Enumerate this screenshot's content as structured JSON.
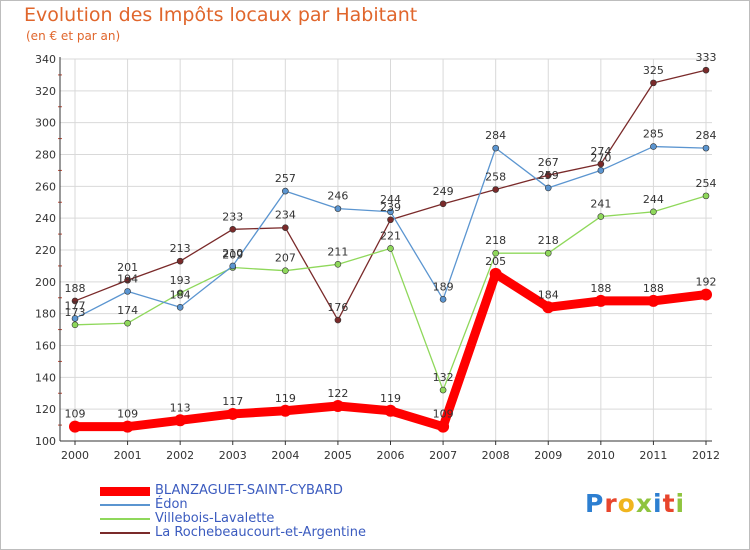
{
  "title": "Evolution des Impôts locaux par Habitant",
  "subtitle": "(en € et par an)",
  "logo": {
    "text": "Proxiti",
    "colors": [
      "#2d7fd1",
      "#e8452c",
      "#f0b51e",
      "#8fc43f",
      "#2d7fd1",
      "#e8452c",
      "#8fc43f"
    ]
  },
  "colors": {
    "frame": "#bdbdbd",
    "grid": "#d9d9d9",
    "axis": "#333333",
    "label": "#333333",
    "tick_minor": "#c0503d"
  },
  "chart_data": {
    "type": "line",
    "title": "Evolution des Impôts locaux par Habitant",
    "ylabel": "(en € et par an)",
    "xlabel": "",
    "ylim": [
      100,
      340
    ],
    "yticks": [
      100,
      120,
      140,
      160,
      180,
      200,
      220,
      240,
      260,
      280,
      300,
      320,
      340
    ],
    "categories": [
      "2000",
      "2001",
      "2002",
      "2003",
      "2004",
      "2005",
      "2006",
      "2007",
      "2008",
      "2009",
      "2010",
      "2011",
      "2012"
    ],
    "grid": true,
    "legend_position": "bottom-left",
    "series": [
      {
        "name": "BLANZAGUET-SAINT-CYBARD",
        "color": "#ff0000",
        "values": [
          109,
          109,
          113,
          117,
          119,
          122,
          119,
          109,
          205,
          184,
          188,
          188,
          192
        ],
        "labels": [
          "109",
          "109",
          "113",
          "117",
          "119",
          "122",
          "119",
          "109",
          "205",
          "184",
          "188",
          "188",
          "192"
        ],
        "bold": true
      },
      {
        "name": "Édon",
        "color": "#5b95d0",
        "values": [
          177,
          194,
          184,
          210,
          257,
          246,
          244,
          189,
          284,
          259,
          270,
          285,
          284
        ],
        "labels": [
          "177",
          "194",
          "184",
          "210",
          "257",
          "246",
          "244",
          "189",
          "284",
          "259",
          "270",
          "285",
          "284"
        ],
        "bold": false
      },
      {
        "name": "Villebois-Lavalette",
        "color": "#8fd85b",
        "values": [
          173,
          174,
          193,
          209,
          207,
          211,
          221,
          132,
          218,
          218,
          241,
          244,
          254
        ],
        "labels": [
          "173",
          "174",
          "193",
          "209",
          "207",
          "211",
          "221",
          "132",
          "218",
          "218",
          "241",
          "244",
          "254"
        ],
        "bold": false
      },
      {
        "name": "La Rochebeaucourt-et-Argentine",
        "color": "#7a2a2a",
        "values": [
          188,
          201,
          213,
          233,
          234,
          176,
          239,
          249,
          258,
          267,
          274,
          325,
          333
        ],
        "labels": [
          "188",
          "201",
          "213",
          "233",
          "234",
          "176",
          "239",
          "249",
          "258",
          "267",
          "274",
          "325",
          "333"
        ],
        "bold": false
      }
    ]
  }
}
